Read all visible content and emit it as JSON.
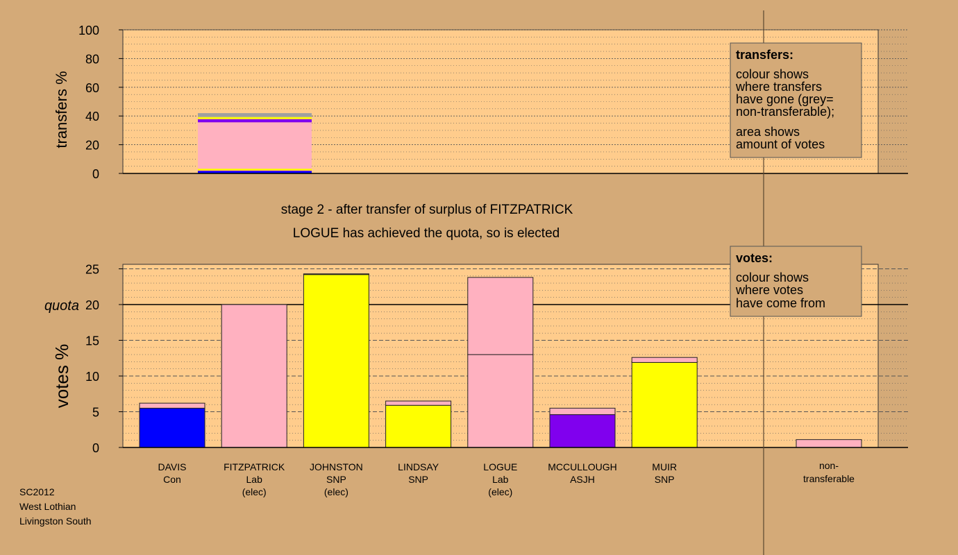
{
  "footer": [
    "SC2012",
    "West Lothian",
    "Livingston South"
  ],
  "stage": {
    "line1": "stage 2 - after transfer of surplus of FITZPATRICK",
    "line2": "LOGUE has achieved the quota, so is elected"
  },
  "legend_transfers": {
    "title": "transfers:",
    "lines1": [
      "colour shows",
      "where transfers",
      "have gone (grey=",
      "non-transferable);"
    ],
    "lines2": [
      "area shows",
      "amount of votes"
    ]
  },
  "legend_votes": {
    "title": "votes:",
    "lines": [
      "colour shows",
      "where votes",
      "have come from"
    ]
  },
  "colors": {
    "background": "#d4aa78",
    "plot_bg": "#ffcc8c",
    "Con": "#0000ff",
    "Lab": "#ffb1c0",
    "SNP": "#ffff00",
    "ASJH": "#8000ee",
    "nontransferable": "#a0a0a0"
  },
  "chart_data": [
    {
      "type": "bar",
      "title": "",
      "ylabel": "transfers %",
      "ylim": [
        0,
        100
      ],
      "yticks": [
        0,
        20,
        40,
        60,
        80,
        100
      ],
      "grid": true,
      "stacked_bar": {
        "source": "FITZPATRICK",
        "segments": [
          {
            "to": "DAVIS",
            "party": "Con",
            "value": 1.5
          },
          {
            "to": "MCCULLOUGH",
            "party": "ASJH",
            "value": 0.5
          },
          {
            "to": "JOHNSTON",
            "party": "SNP",
            "value": 1.3
          },
          {
            "to": "LOGUE",
            "party": "Lab",
            "value": 32.3
          },
          {
            "to": "MCCULLOUGH",
            "party": "ASJH",
            "value": 2.2
          },
          {
            "to": "LINDSAY",
            "party": "SNP",
            "value": 0.7
          },
          {
            "to": "MUIR",
            "party": "SNP",
            "value": 0.8
          },
          {
            "to": "non-transferable",
            "party": "nontransferable",
            "value": 2.7
          }
        ]
      }
    },
    {
      "type": "bar",
      "title": "",
      "ylabel": "votes %",
      "ylim": [
        0,
        25.5
      ],
      "yticks": [
        0,
        5,
        10,
        15,
        20,
        25
      ],
      "quota": 20,
      "quota_label": "quota",
      "grid": true,
      "candidates": [
        {
          "name": "DAVIS",
          "party": "Con",
          "note": "",
          "segments": [
            {
              "party": "Con",
              "value": 5.5
            },
            {
              "party": "Lab",
              "value": 0.7
            }
          ]
        },
        {
          "name": "FITZPATRICK",
          "party": "Lab",
          "note": "(elec)",
          "segments": [
            {
              "party": "Lab",
              "value": 20.0
            }
          ]
        },
        {
          "name": "JOHNSTON",
          "party": "SNP",
          "note": "(elec)",
          "segments": [
            {
              "party": "SNP",
              "value": 24.2
            },
            {
              "party": "Lab",
              "value": 0.1
            }
          ]
        },
        {
          "name": "LINDSAY",
          "party": "SNP",
          "note": "",
          "segments": [
            {
              "party": "SNP",
              "value": 5.9
            },
            {
              "party": "Lab",
              "value": 0.6
            }
          ]
        },
        {
          "name": "LOGUE",
          "party": "Lab",
          "note": "(elec)",
          "segments": [
            {
              "party": "Lab",
              "value": 13.0
            },
            {
              "party": "Lab",
              "value": 10.8
            }
          ]
        },
        {
          "name": "MCCULLOUGH",
          "party": "ASJH",
          "note": "",
          "segments": [
            {
              "party": "ASJH",
              "value": 4.6
            },
            {
              "party": "Lab",
              "value": 0.9
            }
          ]
        },
        {
          "name": "MUIR",
          "party": "SNP",
          "note": "",
          "segments": [
            {
              "party": "SNP",
              "value": 11.9
            },
            {
              "party": "Lab",
              "value": 0.7
            }
          ]
        }
      ],
      "nontransferable": {
        "label": [
          "non-",
          "transferable"
        ],
        "segments": [
          {
            "party": "Lab",
            "value": 1.1
          }
        ]
      }
    }
  ]
}
